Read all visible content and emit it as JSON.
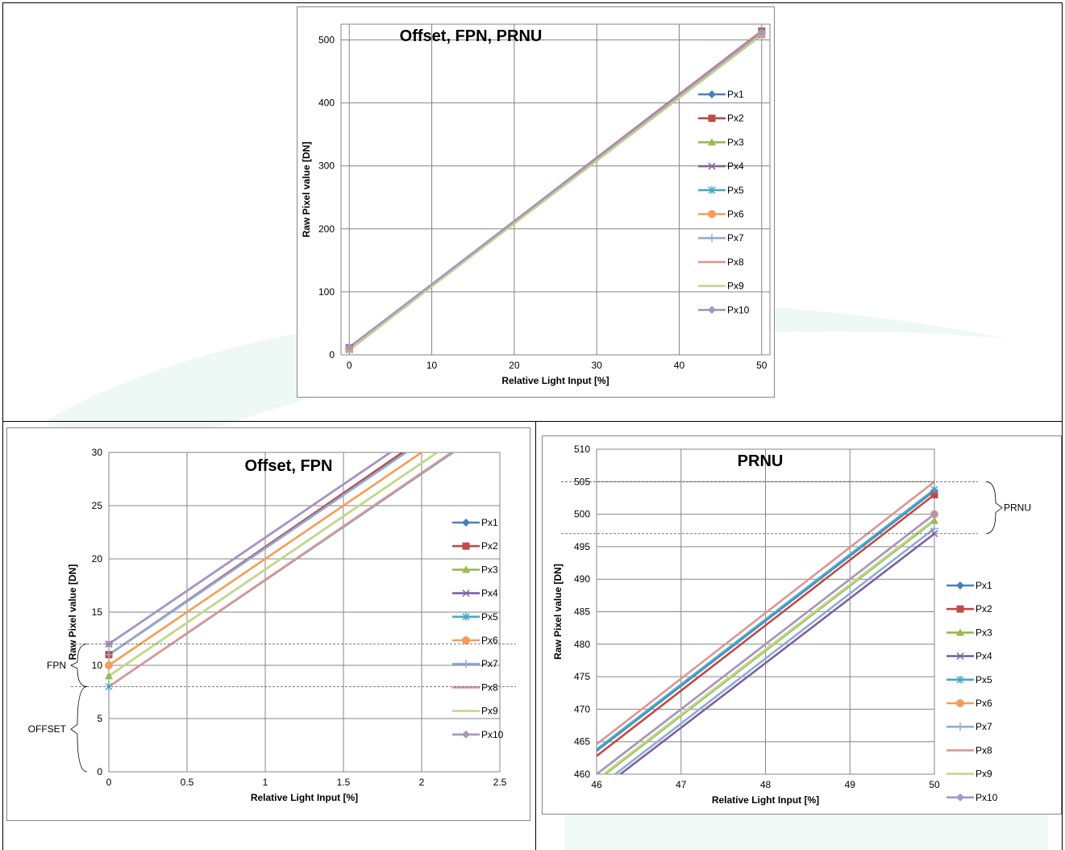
{
  "colors": {
    "Px1": "#4a7ebb",
    "Px2": "#be4b48",
    "Px3": "#98b954",
    "Px4": "#7d60a0",
    "Px5": "#46aac5",
    "Px6": "#f59d56",
    "Px7": "#8eabd9",
    "Px8": "#dd9594",
    "Px9": "#c0d88b",
    "Px10": "#a895c1",
    "grid": "#868686",
    "watermark": "#eaf6f1"
  },
  "series_markers": {
    "Px1": "diamond",
    "Px2": "square",
    "Px3": "triangle",
    "Px4": "x",
    "Px5": "asterisk",
    "Px6": "circle",
    "Px7": "plus",
    "Px8": "dash",
    "Px9": "dash",
    "Px10": "diamond"
  },
  "chart_data": [
    {
      "type": "line",
      "title": "Offset, FPN, PRNU",
      "xlabel": "Relative Light Input [%]",
      "ylabel": "Raw Pixel value [DN]",
      "xlim": [
        -1,
        51
      ],
      "ylim": [
        0,
        525
      ],
      "xticks": [
        0,
        10,
        20,
        30,
        40,
        50
      ],
      "yticks": [
        0,
        100,
        200,
        300,
        400,
        500
      ],
      "legend": "right",
      "grid": true,
      "x": [
        0,
        50
      ],
      "series": [
        {
          "name": "Px1",
          "values": [
            11,
            511
          ]
        },
        {
          "name": "Px2",
          "values": [
            11,
            514
          ]
        },
        {
          "name": "Px3",
          "values": [
            9,
            508
          ]
        },
        {
          "name": "Px4",
          "values": [
            12,
            509
          ]
        },
        {
          "name": "Px5",
          "values": [
            8,
            512
          ]
        },
        {
          "name": "Px6",
          "values": [
            10,
            510
          ]
        },
        {
          "name": "Px7",
          "values": [
            11,
            509
          ]
        },
        {
          "name": "Px8",
          "values": [
            8,
            513
          ]
        },
        {
          "name": "Px9",
          "values": [
            9,
            509
          ]
        },
        {
          "name": "Px10",
          "values": [
            12,
            512
          ]
        }
      ]
    },
    {
      "type": "line",
      "title": "Offset, FPN",
      "xlabel": "Relative Light Input [%]",
      "ylabel": "Raw Pixel value [DN]",
      "xlim": [
        0,
        2.5
      ],
      "ylim": [
        0,
        30
      ],
      "xticks": [
        0,
        0.5,
        1,
        1.5,
        2,
        2.5
      ],
      "xtick_labels": [
        "0",
        "0.5",
        "1",
        "1.5",
        "2",
        "2.5"
      ],
      "yticks": [
        0,
        5,
        10,
        15,
        20,
        25,
        30
      ],
      "legend": "right",
      "grid": true,
      "x": [
        0,
        2.5
      ],
      "series": [
        {
          "name": "Px1",
          "values": [
            11,
            36
          ]
        },
        {
          "name": "Px2",
          "values": [
            11,
            36.3
          ]
        },
        {
          "name": "Px3",
          "values": [
            9,
            34
          ]
        },
        {
          "name": "Px4",
          "values": [
            12,
            37
          ]
        },
        {
          "name": "Px5",
          "values": [
            8,
            33
          ]
        },
        {
          "name": "Px6",
          "values": [
            10,
            35
          ]
        },
        {
          "name": "Px7",
          "values": [
            11,
            36
          ]
        },
        {
          "name": "Px8",
          "values": [
            8,
            33.1
          ]
        },
        {
          "name": "Px9",
          "values": [
            9,
            34
          ]
        },
        {
          "name": "Px10",
          "values": [
            12,
            37
          ]
        }
      ],
      "annotations": {
        "labels": [
          "FPN",
          "OFFSET"
        ],
        "levels": [
          12,
          8
        ]
      }
    },
    {
      "type": "line",
      "title": "PRNU",
      "xlabel": "Relative Light Input [%]",
      "ylabel": "Raw Pixel value [DN]",
      "xlim": [
        46,
        50
      ],
      "ylim": [
        460,
        510
      ],
      "xticks": [
        46,
        47,
        48,
        49,
        50
      ],
      "yticks": [
        460,
        465,
        470,
        475,
        480,
        485,
        490,
        495,
        500,
        505,
        510
      ],
      "legend": "right",
      "grid": true,
      "x": [
        46,
        50
      ],
      "series": [
        {
          "name": "Px1",
          "values": [
            463.6,
            503.6
          ]
        },
        {
          "name": "Px2",
          "values": [
            462.8,
            503
          ]
        },
        {
          "name": "Px3",
          "values": [
            459,
            499
          ]
        },
        {
          "name": "Px4",
          "values": [
            457.2,
            497
          ]
        },
        {
          "name": "Px5",
          "values": [
            463.8,
            503.8
          ]
        },
        {
          "name": "Px6",
          "values": [
            460,
            500
          ]
        },
        {
          "name": "Px7",
          "values": [
            457.8,
            497.8
          ]
        },
        {
          "name": "Px8",
          "values": [
            464.6,
            505
          ]
        },
        {
          "name": "Px9",
          "values": [
            459.2,
            499.2
          ]
        },
        {
          "name": "Px10",
          "values": [
            460,
            500
          ]
        }
      ],
      "annotations": {
        "labels": [
          "PRNU"
        ],
        "levels": [
          505,
          497
        ]
      }
    }
  ]
}
